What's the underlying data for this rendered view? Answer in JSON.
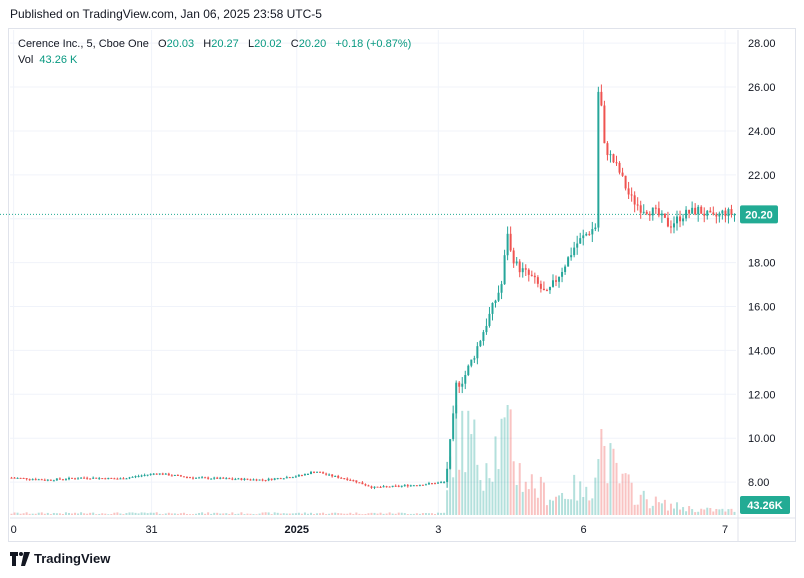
{
  "published": "Published on TradingView.com, Jan 06, 2025 23:58 UTC-5",
  "legend": {
    "symbol": "Cerence Inc., 5, Cboe One",
    "o_label": "O",
    "o": "20.03",
    "h_label": "H",
    "h": "20.27",
    "l_label": "L",
    "l": "20.02",
    "c_label": "C",
    "c": "20.20",
    "change": "+0.18 (+0.87%)",
    "vol_label": "Vol",
    "vol": "43.26 K"
  },
  "footer": {
    "brand": "TradingView",
    "logo_icon": "tradingview-logo-icon"
  },
  "colors": {
    "up": "#26a69a",
    "down": "#ef5350",
    "badge": "#22ab94",
    "grid": "#f0f3fa",
    "text": "#131722"
  },
  "chart_data": {
    "type": "candlestick",
    "symbol": "Cerence Inc.",
    "interval": "5",
    "exchange": "Cboe One",
    "ylim": [
      6.5,
      28.6
    ],
    "y_ticks": [
      "28.00",
      "26.00",
      "24.00",
      "22.00",
      "20.00",
      "18.00",
      "16.00",
      "14.00",
      "12.00",
      "10.00",
      "8.00"
    ],
    "x_ticks": [
      "0",
      "31",
      "2025",
      "3",
      "6",
      "7"
    ],
    "last_price": "20.20",
    "last_volume": "43.26K",
    "price_path": [
      [
        0.0,
        8.2
      ],
      [
        0.05,
        8.1
      ],
      [
        0.1,
        8.2
      ],
      [
        0.15,
        8.15
      ],
      [
        0.2,
        8.4
      ],
      [
        0.25,
        8.2
      ],
      [
        0.3,
        8.15
      ],
      [
        0.35,
        8.1
      ],
      [
        0.4,
        8.3
      ],
      [
        0.42,
        8.5
      ],
      [
        0.44,
        8.3
      ],
      [
        0.47,
        8.1
      ],
      [
        0.5,
        7.75
      ],
      [
        0.53,
        7.8
      ],
      [
        0.57,
        7.9
      ],
      [
        0.6,
        8.0
      ],
      [
        0.61,
        10.6
      ],
      [
        0.615,
        12.4
      ],
      [
        0.625,
        12.7
      ],
      [
        0.64,
        13.8
      ],
      [
        0.66,
        15.5
      ],
      [
        0.68,
        17.2
      ],
      [
        0.685,
        19.7
      ],
      [
        0.69,
        18.5
      ],
      [
        0.7,
        17.8
      ],
      [
        0.72,
        17.3
      ],
      [
        0.74,
        16.5
      ],
      [
        0.76,
        17.6
      ],
      [
        0.78,
        18.8
      ],
      [
        0.795,
        19.3
      ],
      [
        0.81,
        19.7
      ],
      [
        0.812,
        26.8
      ],
      [
        0.82,
        23.3
      ],
      [
        0.84,
        22.2
      ],
      [
        0.855,
        21.0
      ],
      [
        0.87,
        20.5
      ],
      [
        0.89,
        20.3
      ],
      [
        0.91,
        19.7
      ],
      [
        0.93,
        20.2
      ],
      [
        0.95,
        20.4
      ],
      [
        0.97,
        20.0
      ],
      [
        0.985,
        20.3
      ],
      [
        1.0,
        20.2
      ]
    ],
    "volume_path": [
      [
        0.0,
        0.02
      ],
      [
        0.6,
        0.02
      ],
      [
        0.61,
        0.85
      ],
      [
        0.63,
        0.9
      ],
      [
        0.65,
        0.6
      ],
      [
        0.69,
        0.95
      ],
      [
        0.7,
        0.5
      ],
      [
        0.72,
        0.35
      ],
      [
        0.75,
        0.2
      ],
      [
        0.78,
        0.3
      ],
      [
        0.8,
        0.2
      ],
      [
        0.812,
        1.0
      ],
      [
        0.82,
        0.7
      ],
      [
        0.84,
        0.4
      ],
      [
        0.87,
        0.2
      ],
      [
        0.9,
        0.12
      ],
      [
        0.95,
        0.06
      ],
      [
        1.0,
        0.05
      ]
    ]
  }
}
